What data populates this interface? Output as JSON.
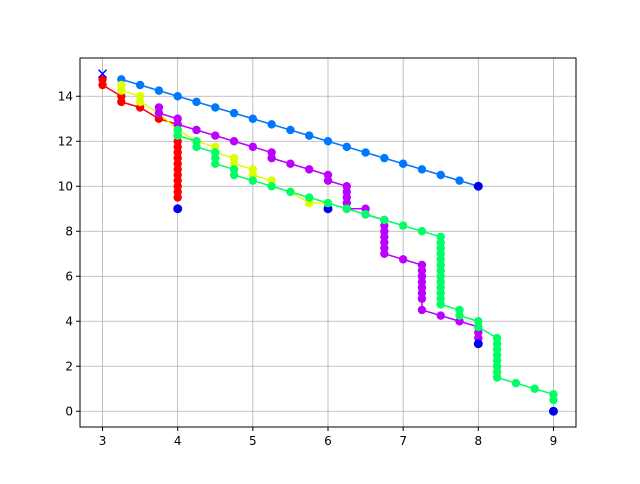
{
  "chart_data": {
    "type": "line",
    "title": "",
    "xlabel": "",
    "ylabel": "",
    "xlim": [
      2.7,
      9.3
    ],
    "ylim": [
      -0.7,
      15.7
    ],
    "grid": true,
    "x_ticks": [
      3,
      4,
      5,
      6,
      7,
      8,
      9
    ],
    "y_ticks": [
      0,
      2,
      4,
      6,
      8,
      10,
      12,
      14
    ],
    "x_tick_labels": [
      "3",
      "4",
      "5",
      "6",
      "7",
      "8",
      "9"
    ],
    "y_tick_labels": [
      "0",
      "2",
      "4",
      "6",
      "8",
      "10",
      "12",
      "14"
    ],
    "start_marker": {
      "x": 3,
      "y": 15,
      "marker": "x",
      "color": "#0000ff"
    },
    "series": [
      {
        "color": "#0077ff",
        "x": [
          3.25,
          3.5,
          3.75,
          4.0,
          4.25,
          4.5,
          4.75,
          5.0,
          5.25,
          5.5,
          5.75,
          6.0,
          6.25,
          6.5,
          6.75,
          7.0,
          7.25,
          7.5,
          7.75,
          8.0
        ],
        "y": [
          14.75,
          14.5,
          14.25,
          14.0,
          13.75,
          13.5,
          13.25,
          13.0,
          12.75,
          12.5,
          12.25,
          12.0,
          11.75,
          11.5,
          11.25,
          11.0,
          10.75,
          10.5,
          10.25,
          10.0
        ],
        "end": {
          "x": 8,
          "y": 10
        }
      },
      {
        "color": "#ff0000",
        "x": [
          3,
          3,
          3.25,
          3.25,
          3.5,
          3.75,
          4,
          4,
          4,
          4,
          4,
          4,
          4,
          4,
          4,
          4,
          4,
          4,
          4,
          4
        ],
        "y": [
          14.75,
          14.5,
          14.0,
          13.75,
          13.5,
          13.0,
          12.75,
          12.5,
          12.25,
          12.0,
          11.75,
          11.5,
          11.25,
          11.0,
          10.75,
          10.5,
          10.25,
          10.0,
          9.75,
          9.5
        ],
        "end": {
          "x": 4,
          "y": 9
        }
      },
      {
        "color": "#ddff00",
        "x": [
          3.25,
          3.25,
          3.5,
          3.5,
          3.75,
          4.0,
          4.25,
          4.5,
          4.5,
          4.75,
          4.75,
          5.0,
          5.0,
          5.25,
          5.25,
          5.5,
          5.75,
          6.0
        ],
        "y": [
          14.5,
          14.25,
          14.0,
          13.75,
          13.25,
          12.5,
          12.0,
          11.75,
          11.5,
          11.25,
          11.0,
          10.75,
          10.5,
          10.25,
          10.0,
          9.75,
          9.25,
          9.25
        ],
        "end": {
          "x": 6,
          "y": 9
        }
      },
      {
        "color": "#bb00ff",
        "x": [
          3.75,
          3.75,
          4.0,
          4.0,
          4.25,
          4.5,
          4.75,
          5.0,
          5.25,
          5.25,
          5.5,
          5.75,
          6.0,
          6.0,
          6.25,
          6.25,
          6.25,
          6.25,
          6.25,
          6.5,
          6.5,
          6.75,
          6.75,
          6.75,
          6.75,
          6.75,
          6.75,
          6.75,
          7.0,
          7.25,
          7.25,
          7.25,
          7.25,
          7.25,
          7.25,
          7.25,
          7.25,
          7.5,
          7.75,
          8.0,
          8.0,
          8.0
        ],
        "y": [
          13.5,
          13.25,
          13.0,
          12.75,
          12.5,
          12.25,
          12.0,
          11.75,
          11.5,
          11.25,
          11.0,
          10.75,
          10.5,
          10.25,
          10.0,
          9.75,
          9.5,
          9.25,
          9.0,
          9.0,
          8.75,
          8.5,
          8.25,
          8.0,
          7.75,
          7.5,
          7.25,
          7.0,
          6.75,
          6.5,
          6.25,
          6.0,
          5.75,
          5.5,
          5.25,
          5.0,
          4.5,
          4.25,
          4.0,
          3.75,
          3.5,
          3.25
        ],
        "end": {
          "x": 8,
          "y": 3
        }
      },
      {
        "color": "#00ff66",
        "x": [
          4.0,
          4.0,
          4.25,
          4.25,
          4.5,
          4.5,
          4.5,
          4.75,
          4.75,
          5.0,
          5.25,
          5.5,
          5.75,
          6.0,
          6.25,
          6.5,
          6.75,
          7.0,
          7.25,
          7.5,
          7.5,
          7.5,
          7.5,
          7.5,
          7.5,
          7.5,
          7.5,
          7.5,
          7.5,
          7.5,
          7.5,
          7.5,
          7.75,
          7.75,
          8.0,
          8.0,
          8.25,
          8.25,
          8.25,
          8.25,
          8.25,
          8.25,
          8.25,
          8.25,
          8.5,
          8.75,
          9.0,
          9.0
        ],
        "y": [
          12.5,
          12.25,
          12.0,
          11.75,
          11.5,
          11.25,
          11.0,
          10.75,
          10.5,
          10.25,
          10.0,
          9.75,
          9.5,
          9.25,
          9.0,
          8.75,
          8.5,
          8.25,
          8.0,
          7.75,
          7.5,
          7.25,
          7.0,
          6.75,
          6.5,
          6.25,
          6.0,
          5.75,
          5.5,
          5.25,
          5.0,
          4.75,
          4.5,
          4.25,
          4.0,
          3.75,
          3.25,
          3.0,
          2.75,
          2.5,
          2.25,
          2.0,
          1.75,
          1.5,
          1.25,
          1.0,
          0.75,
          0.5
        ],
        "end": {
          "x": 9,
          "y": 0
        }
      }
    ],
    "end_marker_color": "#0000ee"
  }
}
